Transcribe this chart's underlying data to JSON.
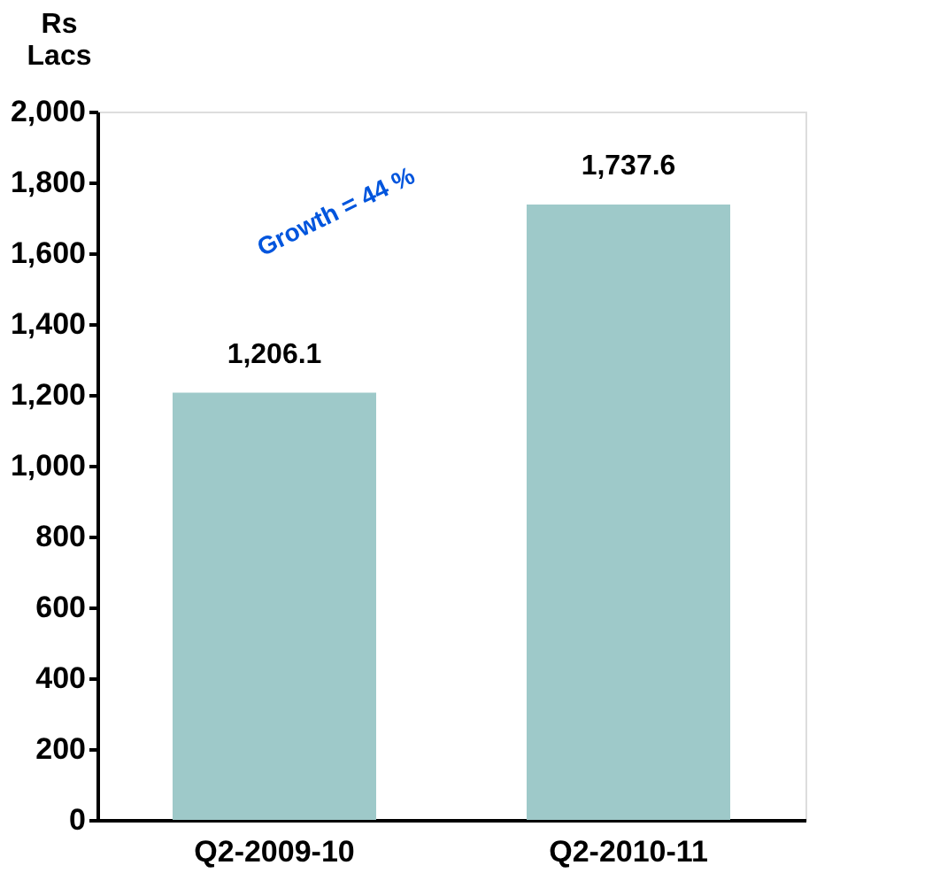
{
  "chart_data": {
    "type": "bar",
    "ylabel": "Rs Lacs",
    "categories": [
      "Q2-2009-10",
      "Q2-2010-11"
    ],
    "values": [
      1206.1,
      1737.6
    ],
    "color": "#9ec9c9",
    "value_labels": [
      "1,206.1",
      "1,737.6"
    ],
    "ylim": [
      0,
      2000
    ],
    "yticks": [
      0,
      200,
      400,
      600,
      800,
      {
        "value": 1000,
        "label": "1,000"
      },
      {
        "value": 1200,
        "label": "1,200"
      },
      {
        "value": 1400,
        "label": "1,400"
      },
      {
        "value": 1600,
        "label": "1,600"
      },
      {
        "value": 1800,
        "label": "1,800"
      },
      {
        "value": 2000,
        "label": "2,000"
      }
    ],
    "grid": false,
    "annotations": [
      "Growth = 44 %"
    ]
  }
}
